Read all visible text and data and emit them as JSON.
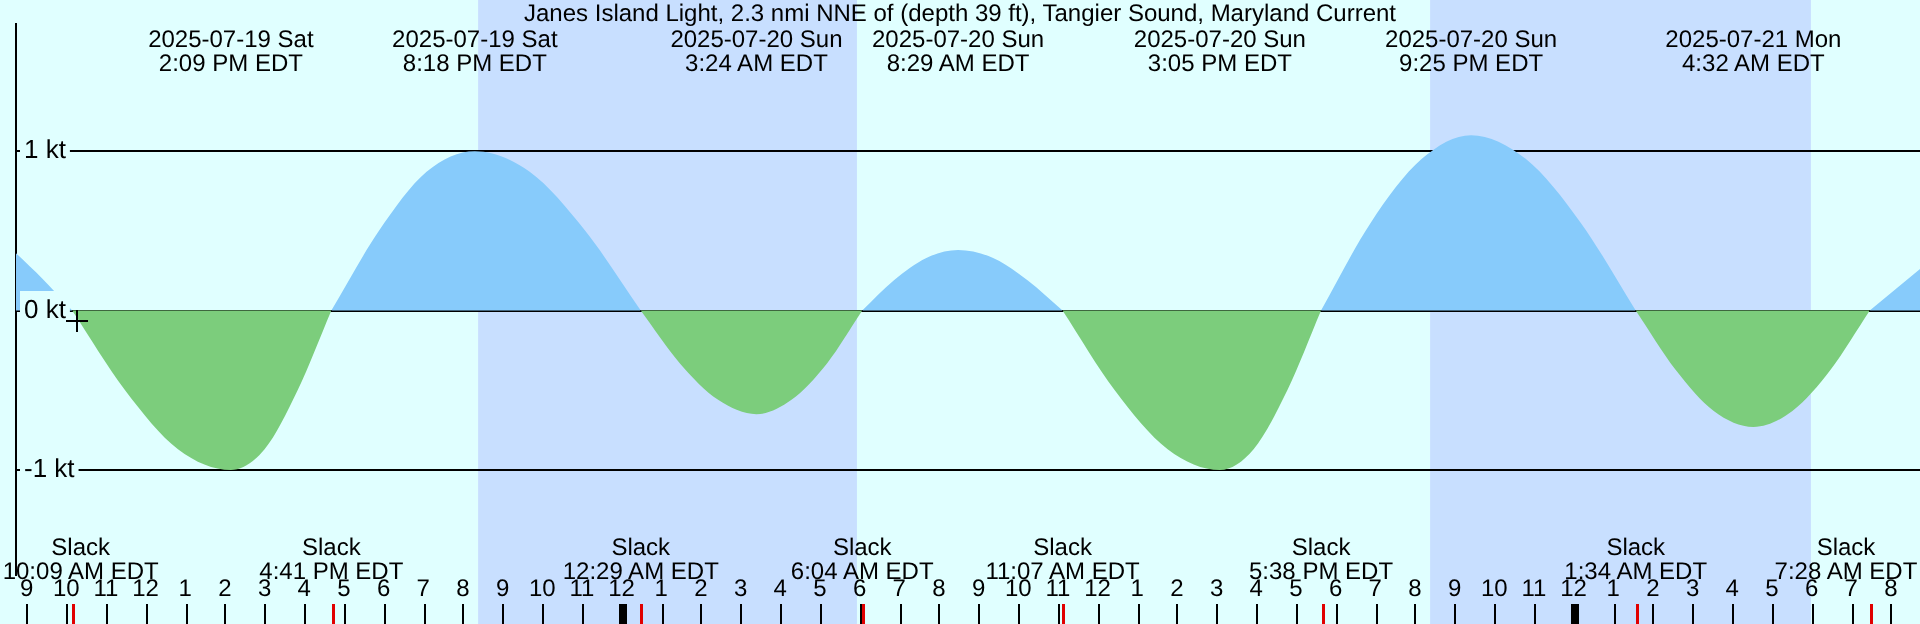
{
  "chart_data": {
    "type": "area",
    "title": "Janes Island Light, 2.3 nmi NNE of (depth 39 ft), Tangier Sound, Maryland Current",
    "x": [
      "2025-07-19T08:44",
      "2025-07-19T09:24",
      "2025-07-19T10:09",
      "2025-07-19T11:29",
      "2025-07-19T12:49",
      "2025-07-19T14:09",
      "2025-07-19T15:00",
      "2025-07-19T15:50",
      "2025-07-19T16:41",
      "2025-07-19T17:53",
      "2025-07-19T19:05",
      "2025-07-19T20:18",
      "2025-07-19T21:41",
      "2025-07-19T23:05",
      "2025-07-20T00:29",
      "2025-07-20T01:28",
      "2025-07-20T02:26",
      "2025-07-20T03:24",
      "2025-07-20T04:17",
      "2025-07-20T05:11",
      "2025-07-20T06:04",
      "2025-07-20T06:52",
      "2025-07-20T07:41",
      "2025-07-20T08:29",
      "2025-07-20T09:22",
      "2025-07-20T10:14",
      "2025-07-20T11:07",
      "2025-07-20T12:26",
      "2025-07-20T13:46",
      "2025-07-20T15:05",
      "2025-07-20T15:56",
      "2025-07-20T16:47",
      "2025-07-20T17:38",
      "2025-07-20T18:53",
      "2025-07-20T20:10",
      "2025-07-20T21:25",
      "2025-07-20T22:48",
      "2025-07-21T00:11",
      "2025-07-21T01:34",
      "2025-07-21T02:34",
      "2025-07-21T03:32",
      "2025-07-21T04:32",
      "2025-07-21T05:31",
      "2025-07-21T06:29",
      "2025-07-21T07:28",
      "2025-07-21T08:44"
    ],
    "series": [
      {
        "color": "#87cbfb",
        "values": [
          0.36,
          0.2,
          0,
          null,
          null,
          null,
          null,
          null,
          0,
          0.5,
          0.87,
          1.0,
          0.87,
          0.5,
          0,
          null,
          null,
          null,
          null,
          null,
          0,
          0.19,
          0.33,
          0.38,
          0.33,
          0.19,
          0,
          null,
          null,
          null,
          null,
          null,
          0,
          0.55,
          0.95,
          1.1,
          0.95,
          0.55,
          0,
          null,
          null,
          null,
          null,
          null,
          0,
          0.26
        ]
      },
      {
        "color": "#7ccd7c",
        "values": [
          null,
          null,
          0,
          -0.5,
          -0.87,
          -1.0,
          -0.87,
          -0.5,
          0,
          null,
          null,
          null,
          null,
          null,
          0,
          -0.33,
          -0.56,
          -0.65,
          -0.56,
          -0.33,
          0,
          null,
          null,
          null,
          null,
          null,
          0,
          -0.5,
          -0.87,
          -1.0,
          -0.87,
          -0.5,
          0,
          null,
          null,
          null,
          null,
          null,
          0,
          -0.37,
          -0.63,
          -0.73,
          -0.63,
          -0.37,
          0,
          null
        ]
      }
    ],
    "xlim": [
      "2025-07-19T08:44",
      "2025-07-21T08:44"
    ],
    "xticks": [
      {
        "value": "2025-07-19T09:00",
        "label": "9"
      },
      {
        "value": "2025-07-19T10:00",
        "label": "10"
      },
      {
        "value": "2025-07-19T11:00",
        "label": "11"
      },
      {
        "value": "2025-07-19T12:00",
        "label": "12"
      },
      {
        "value": "2025-07-19T13:00",
        "label": "1"
      },
      {
        "value": "2025-07-19T14:00",
        "label": "2"
      },
      {
        "value": "2025-07-19T15:00",
        "label": "3"
      },
      {
        "value": "2025-07-19T16:00",
        "label": "4"
      },
      {
        "value": "2025-07-19T17:00",
        "label": "5"
      },
      {
        "value": "2025-07-19T18:00",
        "label": "6"
      },
      {
        "value": "2025-07-19T19:00",
        "label": "7"
      },
      {
        "value": "2025-07-19T20:00",
        "label": "8"
      },
      {
        "value": "2025-07-19T21:00",
        "label": "9"
      },
      {
        "value": "2025-07-19T22:00",
        "label": "10"
      },
      {
        "value": "2025-07-19T23:00",
        "label": "11"
      },
      {
        "value": "2025-07-20T00:00",
        "label": "12"
      },
      {
        "value": "2025-07-20T01:00",
        "label": "1"
      },
      {
        "value": "2025-07-20T02:00",
        "label": "2"
      },
      {
        "value": "2025-07-20T03:00",
        "label": "3"
      },
      {
        "value": "2025-07-20T04:00",
        "label": "4"
      },
      {
        "value": "2025-07-20T05:00",
        "label": "5"
      },
      {
        "value": "2025-07-20T06:00",
        "label": "6"
      },
      {
        "value": "2025-07-20T07:00",
        "label": "7"
      },
      {
        "value": "2025-07-20T08:00",
        "label": "8"
      },
      {
        "value": "2025-07-20T09:00",
        "label": "9"
      },
      {
        "value": "2025-07-20T10:00",
        "label": "10"
      },
      {
        "value": "2025-07-20T11:00",
        "label": "11"
      },
      {
        "value": "2025-07-20T12:00",
        "label": "12"
      },
      {
        "value": "2025-07-20T13:00",
        "label": "1"
      },
      {
        "value": "2025-07-20T14:00",
        "label": "2"
      },
      {
        "value": "2025-07-20T15:00",
        "label": "3"
      },
      {
        "value": "2025-07-20T16:00",
        "label": "4"
      },
      {
        "value": "2025-07-20T17:00",
        "label": "5"
      },
      {
        "value": "2025-07-20T18:00",
        "label": "6"
      },
      {
        "value": "2025-07-20T19:00",
        "label": "7"
      },
      {
        "value": "2025-07-20T20:00",
        "label": "8"
      },
      {
        "value": "2025-07-20T21:00",
        "label": "9"
      },
      {
        "value": "2025-07-20T22:00",
        "label": "10"
      },
      {
        "value": "2025-07-20T23:00",
        "label": "11"
      },
      {
        "value": "2025-07-21T00:00",
        "label": "12"
      },
      {
        "value": "2025-07-21T01:00",
        "label": "1"
      },
      {
        "value": "2025-07-21T02:00",
        "label": "2"
      },
      {
        "value": "2025-07-21T03:00",
        "label": "3"
      },
      {
        "value": "2025-07-21T04:00",
        "label": "4"
      },
      {
        "value": "2025-07-21T05:00",
        "label": "5"
      },
      {
        "value": "2025-07-21T06:00",
        "label": "6"
      },
      {
        "value": "2025-07-21T07:00",
        "label": "7"
      },
      {
        "value": "2025-07-21T08:00",
        "label": "8"
      }
    ],
    "ylim": [
      -1.66,
      1.8
    ],
    "yticks": [
      {
        "value": 1,
        "label": "1 kt"
      },
      {
        "value": 0,
        "label": "0 kt"
      },
      {
        "value": -1,
        "label": "-1 kt"
      }
    ],
    "grid": "y",
    "bands": [
      {
        "axis": "x",
        "from": "2025-07-19T20:23",
        "to": "2025-07-20T05:56",
        "color": "#c8dfff"
      },
      {
        "axis": "x",
        "from": "2025-07-20T20:23",
        "to": "2025-07-21T05:59",
        "color": "#c8dfff"
      }
    ],
    "annotations": [
      "Slack\n10:09 AM EDT",
      "2025-07-19 Sat\n2:09 PM EDT",
      "Slack\n4:41 PM EDT",
      "2025-07-19 Sat\n8:18 PM EDT",
      "Slack\n12:29 AM EDT",
      "2025-07-20 Sun\n3:24 AM EDT",
      "Slack\n6:04 AM EDT",
      "2025-07-20 Sun\n8:29 AM EDT",
      "Slack\n11:07 AM EDT",
      "2025-07-20 Sun\n3:05 PM EDT",
      "Slack\n5:38 PM EDT",
      "2025-07-20 Sun\n9:25 PM EDT",
      "Slack\n1:34 AM EDT",
      "2025-07-21 Mon\n4:32 AM EDT",
      "Slack\n7:28 AM EDT"
    ]
  }
}
